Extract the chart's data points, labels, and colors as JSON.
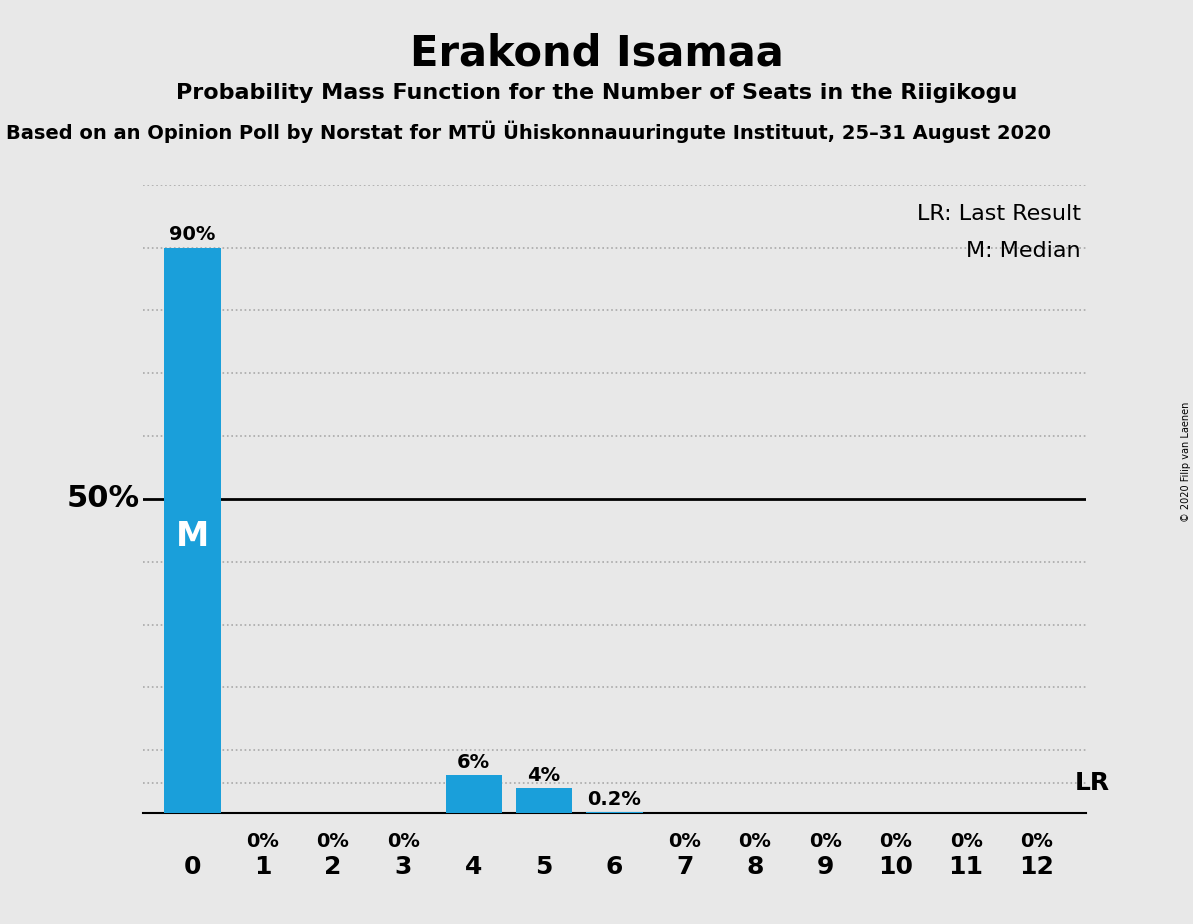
{
  "title": "Erakond Isamaa",
  "subtitle": "Probability Mass Function for the Number of Seats in the Riigikogu",
  "source_line": "Based on an Opinion Poll by Norstat for MTÜ Ühiskonnauuringute Instituut, 25–31 August 2020",
  "copyright": "© 2020 Filip van Laenen",
  "seats": [
    0,
    1,
    2,
    3,
    4,
    5,
    6,
    7,
    8,
    9,
    10,
    11,
    12
  ],
  "probabilities": [
    0.9,
    0.0,
    0.0,
    0.0,
    0.06,
    0.04,
    0.002,
    0.0,
    0.0,
    0.0,
    0.0,
    0.0,
    0.0
  ],
  "bar_labels": [
    "90%",
    "0%",
    "0%",
    "0%",
    "6%",
    "4%",
    "0.2%",
    "0%",
    "0%",
    "0%",
    "0%",
    "0%",
    "0%"
  ],
  "bar_color": "#1a9fda",
  "background_color": "#e8e8e8",
  "ylim": [
    0,
    1.0
  ],
  "fifty_pct_label": "50%",
  "median_seat": 0,
  "median_label": "M",
  "lr_value": 0.048,
  "lr_label": "LR",
  "legend_lr": "LR: Last Result",
  "legend_m": "M: Median",
  "title_fontsize": 30,
  "subtitle_fontsize": 16,
  "source_fontsize": 14,
  "label_fontsize": 14,
  "tick_fontsize": 18,
  "dotted_grid_levels": [
    0.1,
    0.2,
    0.3,
    0.4,
    0.6,
    0.7,
    0.8,
    0.9,
    1.0
  ],
  "solid_grid_levels": [
    0.5
  ],
  "lr_dotted_level": 0.048
}
